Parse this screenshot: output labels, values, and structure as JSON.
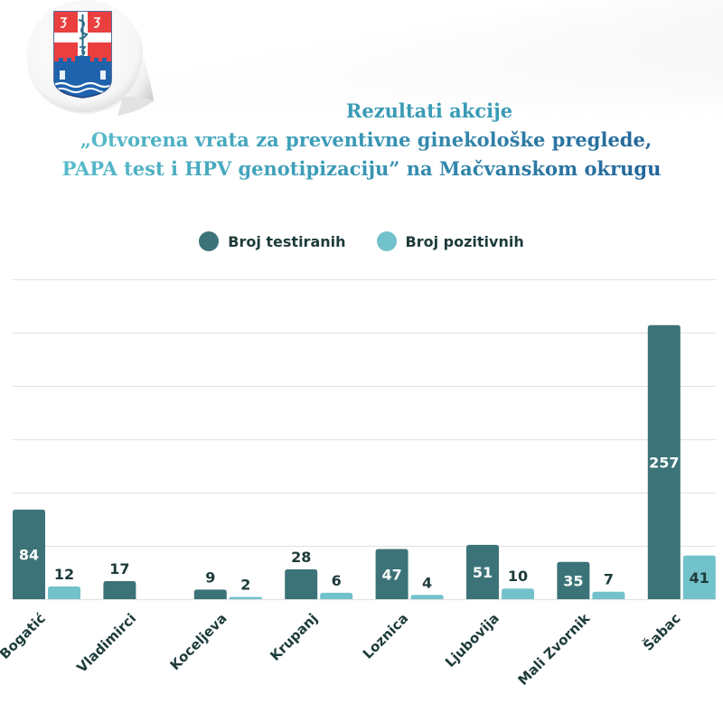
{
  "header": {
    "logo": "coat-of-arms-sticker-icon",
    "title_line1": "Rezultati akcije",
    "title_line2": "„Otvorena vrata za preventivne ginekološke preglede,",
    "title_line3": "PAPA test i  HPV genotipizaciju” na Mačvanskom okrugu"
  },
  "colors": {
    "tested": "#3b7378",
    "positive": "#72c2cc",
    "grid": "#e3e3e3",
    "label_dark": "#1d3b3a",
    "title_start": "#5ec3cf",
    "title_end": "#1e5a93"
  },
  "chart_data": {
    "type": "bar",
    "title": "Rezultati akcije „Otvorena vrata za preventivne ginekološke preglede, PAPA test i HPV genotipizaciju” na Mačvanskom okrugu",
    "xlabel": "",
    "ylabel": "",
    "ylim": [
      0,
      300
    ],
    "grid": true,
    "grid_step": 50,
    "legend_position": "top-center",
    "categories": [
      "Bogatić",
      "Vladimirci",
      "Koceljeva",
      "Krupanj",
      "Loznica",
      "Ljubovija",
      "Mali Zvornik",
      "Šabac"
    ],
    "series": [
      {
        "name": "Broj testiranih",
        "values": [
          84,
          17,
          9,
          28,
          47,
          51,
          35,
          257
        ]
      },
      {
        "name": "Broj pozitivnih",
        "values": [
          12,
          null,
          2,
          6,
          4,
          10,
          7,
          41
        ]
      }
    ]
  }
}
